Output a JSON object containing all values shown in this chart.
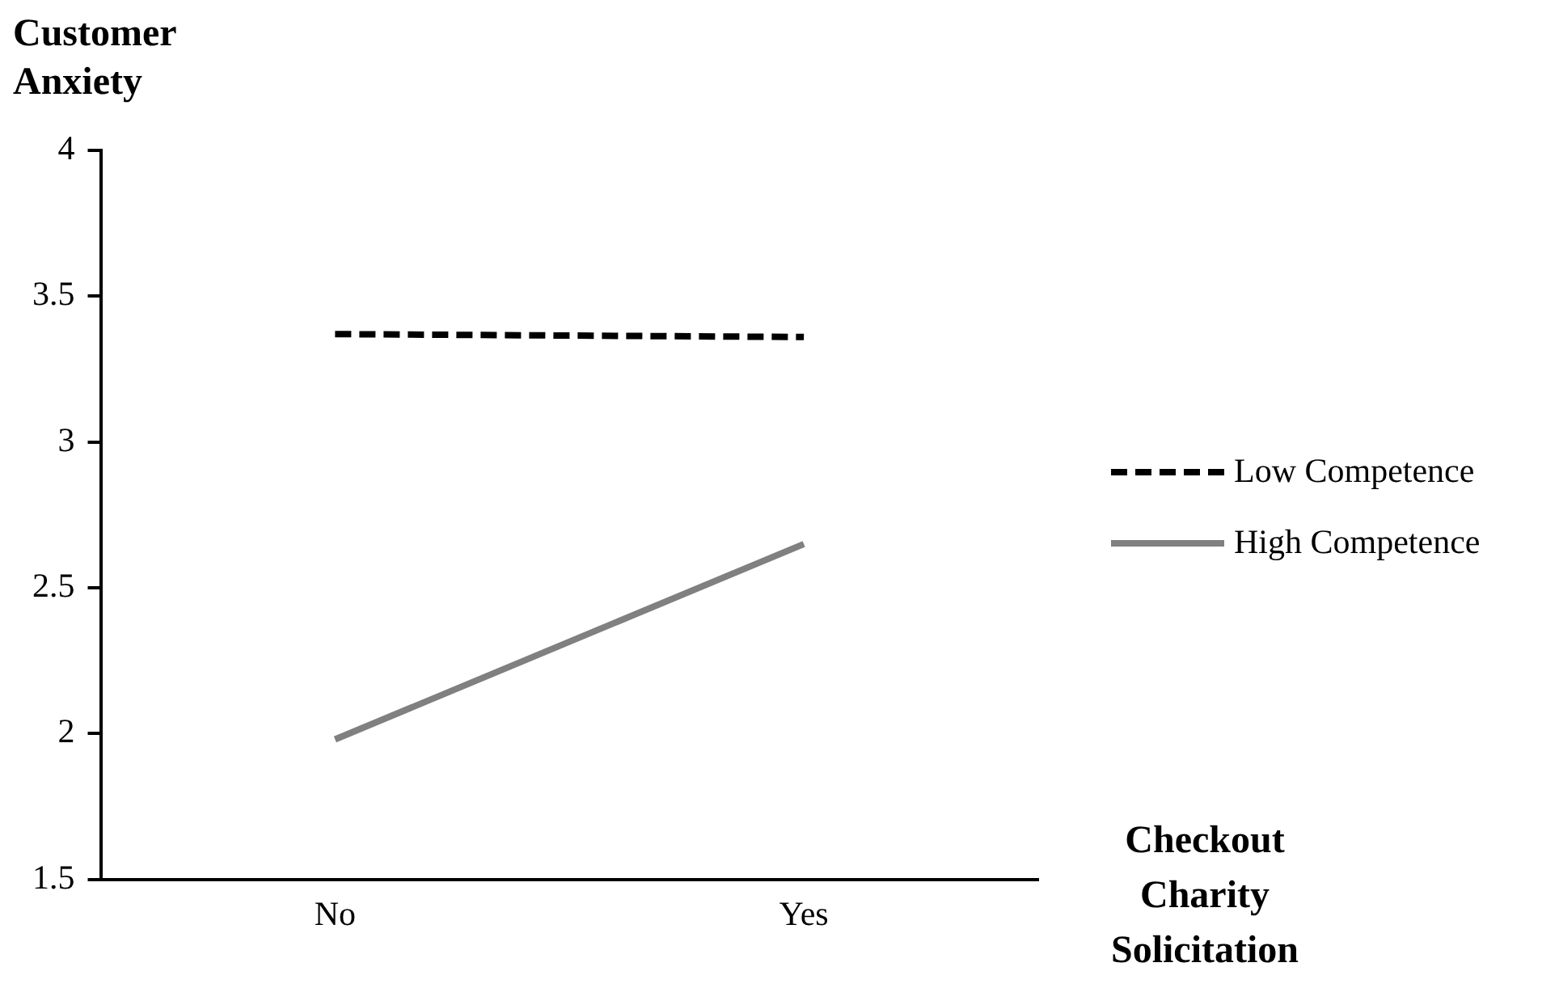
{
  "chart_data": {
    "type": "line",
    "ylabel": "Customer Anxiety",
    "xlabel": "Checkout Charity Solicitation",
    "categories": [
      "No",
      "Yes"
    ],
    "series": [
      {
        "name": "Low Competence",
        "color": "#000000",
        "values": [
          3.37,
          3.36
        ],
        "line_style": "dashed"
      },
      {
        "name": "High Competence",
        "color": "#808080",
        "values": [
          1.98,
          2.65
        ],
        "line_style": "solid"
      }
    ],
    "ylim": [
      1.5,
      4
    ],
    "yticks": [
      1.5,
      2,
      2.5,
      3,
      3.5,
      4
    ],
    "grid": false,
    "legend": "right",
    "marker": "none"
  }
}
